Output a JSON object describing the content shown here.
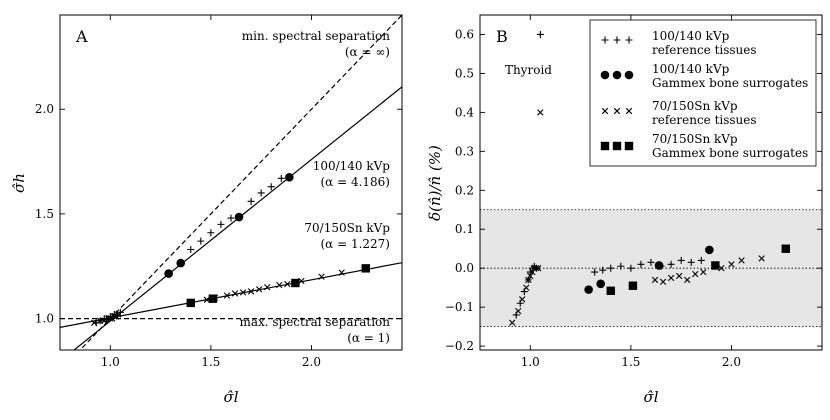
{
  "chart_data": [
    {
      "panel": "A",
      "type": "scatter",
      "xlabel": "σ̂l",
      "ylabel": "σ̂h",
      "xlim": [
        0.75,
        2.45
      ],
      "ylim": [
        0.85,
        2.45
      ],
      "x_ticks": [
        "1.0",
        "1.5",
        "2.0"
      ],
      "y_ticks": [
        "1.0",
        "1.5",
        "2.0"
      ],
      "lines": [
        {
          "name": "min. spectral separation",
          "style": "dashed",
          "slope": 1.0,
          "intercept": 0.0
        },
        {
          "name": "max. spectral separation",
          "style": "dashed",
          "slope": 0.0,
          "intercept": 1.0
        },
        {
          "name": "100/140 kVp",
          "style": "solid",
          "x": [
            0.75,
            2.45
          ],
          "y": [
            0.796,
            2.107
          ]
        },
        {
          "name": "70/150Sn kVp",
          "style": "solid",
          "x": [
            0.75,
            2.45
          ],
          "y": [
            0.958,
            1.267
          ]
        }
      ],
      "annotations": [
        {
          "title": "min. spectral separation",
          "sub": "(α = ∞)"
        },
        {
          "title": "100/140 kVp",
          "sub": "(α = 4.186)"
        },
        {
          "title": "70/150Sn kVp",
          "sub": "(α = 1.227)"
        },
        {
          "title": "max. spectral separation",
          "sub": "(α = 1)"
        }
      ],
      "series": [
        {
          "name": "100/140 kVp reference tissues",
          "marker": "plus",
          "x": [
            0.93,
            0.95,
            0.97,
            0.98,
            0.99,
            1.0,
            1.01,
            1.02,
            1.03,
            1.05,
            1.4,
            1.45,
            1.5,
            1.55,
            1.6,
            1.7,
            1.75,
            1.8,
            1.85
          ],
          "y": [
            0.98,
            0.99,
            1.0,
            1.0,
            1.0,
            1.01,
            1.01,
            1.02,
            1.02,
            1.03,
            1.33,
            1.37,
            1.41,
            1.45,
            1.48,
            1.56,
            1.6,
            1.63,
            1.67
          ]
        },
        {
          "name": "100/140 kVp Gammex bone surrogates",
          "marker": "circle",
          "x": [
            1.29,
            1.35,
            1.64,
            1.89
          ],
          "y": [
            1.215,
            1.265,
            1.485,
            1.675
          ]
        },
        {
          "name": "70/150Sn kVp reference tissues",
          "marker": "x",
          "x": [
            0.92,
            0.95,
            0.97,
            0.99,
            1.0,
            1.01,
            1.02,
            1.03,
            1.04,
            1.48,
            1.52,
            1.58,
            1.62,
            1.66,
            1.7,
            1.74,
            1.78,
            1.84,
            1.88,
            1.95,
            2.05,
            2.15
          ],
          "y": [
            0.98,
            0.99,
            0.99,
            1.0,
            1.0,
            1.0,
            1.01,
            1.01,
            1.02,
            1.09,
            1.1,
            1.11,
            1.12,
            1.125,
            1.13,
            1.14,
            1.15,
            1.16,
            1.165,
            1.18,
            1.2,
            1.22
          ]
        },
        {
          "name": "70/150Sn kVp Gammex bone surrogates",
          "marker": "square",
          "x": [
            1.4,
            1.51,
            1.92,
            2.27
          ],
          "y": [
            1.075,
            1.095,
            1.17,
            1.24
          ]
        }
      ]
    },
    {
      "panel": "B",
      "type": "scatter",
      "xlabel": "σ̂l",
      "ylabel": "δ(n̂)/n̂ (%)",
      "xlim": [
        0.75,
        2.45
      ],
      "ylim": [
        -0.21,
        0.65
      ],
      "x_ticks": [
        "1.0",
        "1.5",
        "2.0"
      ],
      "y_ticks": [
        "−0.2",
        "−0.1",
        "0.0",
        "0.1",
        "0.2",
        "0.3",
        "0.4",
        "0.5",
        "0.6"
      ],
      "shaded_band": [
        -0.15,
        0.15
      ],
      "dotted_lines": [
        -0.15,
        0.0,
        0.15
      ],
      "annotation": "Thyroid",
      "legend_position": "top-right",
      "legend": [
        {
          "marker": "plus",
          "line1": "100/140 kVp",
          "line2": "reference tissues"
        },
        {
          "marker": "circle",
          "line1": "100/140 kVp",
          "line2": "Gammex bone surrogates"
        },
        {
          "marker": "x",
          "line1": "70/150Sn kVp",
          "line2": "reference tissues"
        },
        {
          "marker": "square",
          "line1": "70/150Sn kVp",
          "line2": "Gammex bone surrogates"
        }
      ],
      "series": [
        {
          "name": "100/140 kVp reference tissues",
          "marker": "plus",
          "x": [
            1.05,
            0.93,
            0.95,
            0.97,
            0.99,
            1.0,
            1.01,
            1.02,
            1.03,
            1.32,
            1.36,
            1.4,
            1.45,
            1.5,
            1.55,
            1.6,
            1.65,
            1.7,
            1.75,
            1.8,
            1.85
          ],
          "y": [
            0.6,
            -0.12,
            -0.09,
            -0.06,
            -0.03,
            -0.01,
            0.0,
            0.005,
            0.0,
            -0.01,
            -0.005,
            0.0,
            0.005,
            0.0,
            0.01,
            0.015,
            0.005,
            0.01,
            0.02,
            0.015,
            0.02
          ]
        },
        {
          "name": "100/140 kVp Gammex bone surrogates",
          "marker": "circle",
          "x": [
            1.29,
            1.35,
            1.64,
            1.89
          ],
          "y": [
            -0.055,
            -0.04,
            0.007,
            0.047
          ]
        },
        {
          "name": "70/150Sn kVp reference tissues",
          "marker": "x",
          "x": [
            1.05,
            0.91,
            0.94,
            0.96,
            0.98,
            0.99,
            1.0,
            1.01,
            1.02,
            1.03,
            1.04,
            1.62,
            1.66,
            1.7,
            1.74,
            1.78,
            1.82,
            1.86,
            1.95,
            2.0,
            2.05,
            2.15
          ],
          "y": [
            0.4,
            -0.14,
            -0.11,
            -0.08,
            -0.05,
            -0.03,
            -0.02,
            -0.01,
            0.0,
            0.0,
            0.0,
            -0.03,
            -0.035,
            -0.025,
            -0.02,
            -0.03,
            -0.015,
            -0.01,
            0.0,
            0.01,
            0.02,
            0.025
          ]
        },
        {
          "name": "70/150Sn kVp Gammex bone surrogates",
          "marker": "square",
          "x": [
            1.4,
            1.51,
            1.92,
            2.27
          ],
          "y": [
            -0.058,
            -0.045,
            0.007,
            0.05
          ]
        }
      ]
    }
  ]
}
